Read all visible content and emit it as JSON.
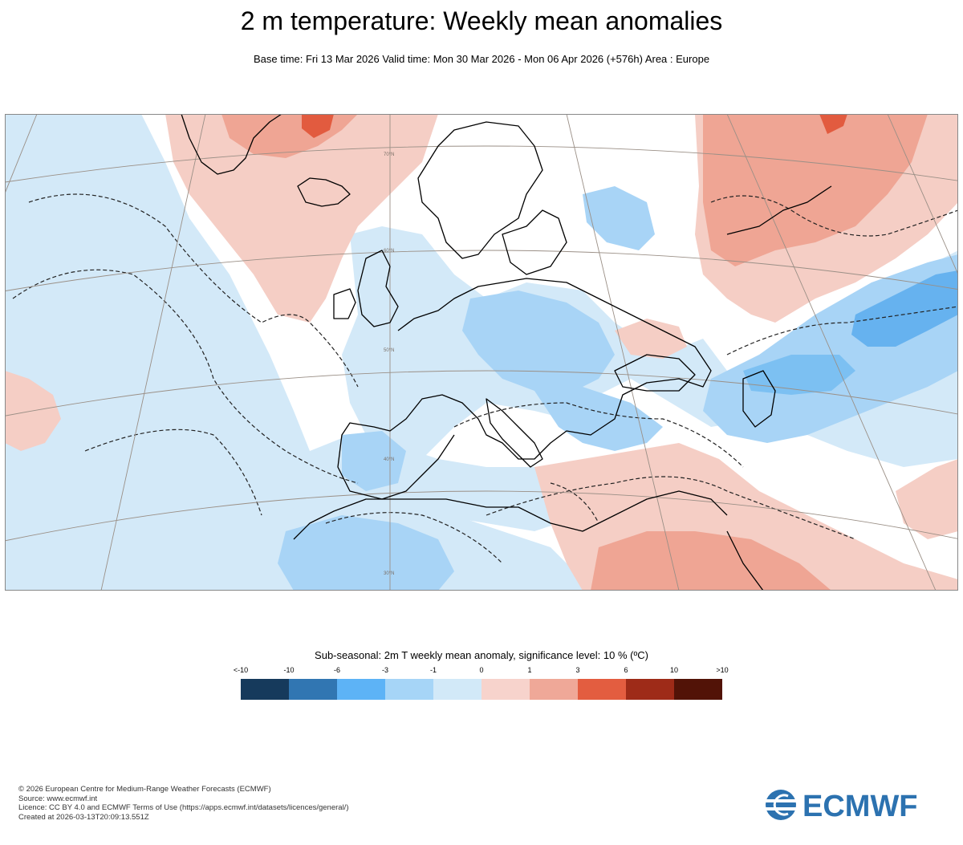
{
  "header": {
    "title": "2 m temperature: Weekly mean anomalies",
    "subtitle": "Base time: Fri 13 Mar 2026 Valid time: Mon 30 Mar 2026 - Mon 06 Apr 2026 (+576h) Area : Europe"
  },
  "map": {
    "area": "Europe",
    "latitude_labels": [
      "70°N",
      "60°N",
      "50°N",
      "40°N",
      "30°N"
    ],
    "colors": {
      "ocean_cold": "#d3e9f8",
      "cold_1": "#a8d4f6",
      "cold_3": "#66b2ef",
      "warm_1": "#f5cec5",
      "warm_3": "#efa594",
      "warm_6": "#e25b3f",
      "coast": "#000000",
      "grid": "#9a8f86"
    }
  },
  "legend": {
    "title": "Sub-seasonal: 2m T weekly mean anomaly, significance level: 10 % (ºC)",
    "ticks": [
      "<-10",
      "-10",
      "-6",
      "-3",
      "-1",
      "0",
      "1",
      "3",
      "6",
      "10",
      ">10"
    ],
    "colors": [
      "#163a5c",
      "#3176b2",
      "#5db3f6",
      "#a6d5f7",
      "#d2e9f8",
      "#f7d3cc",
      "#efa898",
      "#e35d40",
      "#9e2b18",
      "#521307"
    ]
  },
  "footer": {
    "line1": "© 2026 European Centre for Medium-Range Weather Forecasts (ECMWF)",
    "line2": "Source: www.ecmwf.int",
    "line3": "Licence: CC BY 4.0 and ECMWF Terms of Use (https://apps.ecmwf.int/datasets/licences/general/)",
    "line4": "Created at 2026-03-13T20:09:13.551Z"
  },
  "logo": {
    "text": "ECMWF",
    "color": "#2c72b0"
  }
}
